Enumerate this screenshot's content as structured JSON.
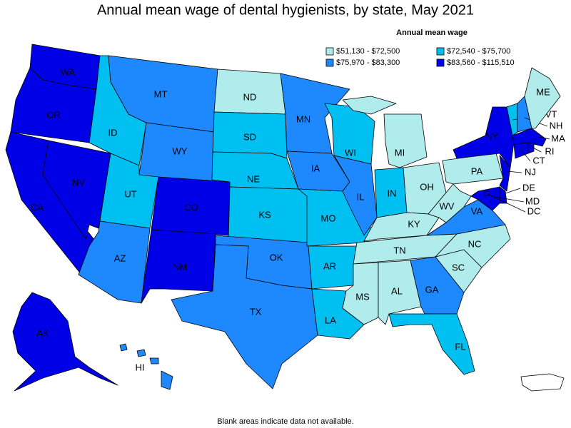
{
  "title": "Annual mean wage of dental hygienists, by state, May 2021",
  "legend": {
    "title": "Annual mean wage",
    "items": [
      {
        "label": "$51,130 - $72,500",
        "color": "#b0ecec"
      },
      {
        "label": "$72,540 - $75,700",
        "color": "#00c0f2"
      },
      {
        "label": "$75,970 - $83,300",
        "color": "#1e88ff"
      },
      {
        "label": "$83,560 - $115,510",
        "color": "#0000e6"
      }
    ]
  },
  "states": [
    {
      "label": "WA",
      "class": 3
    },
    {
      "label": "OR",
      "class": 3
    },
    {
      "label": "CA",
      "class": 3
    },
    {
      "label": "NV",
      "class": 3
    },
    {
      "label": "ID",
      "class": 1
    },
    {
      "label": "MT",
      "class": 2
    },
    {
      "label": "WY",
      "class": 2
    },
    {
      "label": "UT",
      "class": 1
    },
    {
      "label": "AZ",
      "class": 2
    },
    {
      "label": "CO",
      "class": 3
    },
    {
      "label": "NM",
      "class": 3
    },
    {
      "label": "ND",
      "class": 0
    },
    {
      "label": "SD",
      "class": 1
    },
    {
      "label": "NE",
      "class": 1
    },
    {
      "label": "KS",
      "class": 1
    },
    {
      "label": "OK",
      "class": 2
    },
    {
      "label": "TX",
      "class": 2
    },
    {
      "label": "MN",
      "class": 2
    },
    {
      "label": "IA",
      "class": 2
    },
    {
      "label": "MO",
      "class": 1
    },
    {
      "label": "AR",
      "class": 1
    },
    {
      "label": "LA",
      "class": 1
    },
    {
      "label": "WI",
      "class": 1
    },
    {
      "label": "IL",
      "class": 2
    },
    {
      "label": "MI",
      "class": 0
    },
    {
      "label": "IN",
      "class": 1
    },
    {
      "label": "OH",
      "class": 0
    },
    {
      "label": "KY",
      "class": 0
    },
    {
      "label": "TN",
      "class": 0
    },
    {
      "label": "MS",
      "class": 0
    },
    {
      "label": "AL",
      "class": 0
    },
    {
      "label": "GA",
      "class": 2
    },
    {
      "label": "FL",
      "class": 1
    },
    {
      "label": "SC",
      "class": 0
    },
    {
      "label": "NC",
      "class": 0
    },
    {
      "label": "VA",
      "class": 2
    },
    {
      "label": "WV",
      "class": 0
    },
    {
      "label": "PA",
      "class": 0
    },
    {
      "label": "NY",
      "class": 3
    },
    {
      "label": "NJ",
      "class": 3
    },
    {
      "label": "DE",
      "class": 3
    },
    {
      "label": "MD",
      "class": 3
    },
    {
      "label": "DC",
      "class": 3
    },
    {
      "label": "VT",
      "class": 1
    },
    {
      "label": "NH",
      "class": 2
    },
    {
      "label": "ME",
      "class": 0
    },
    {
      "label": "MA",
      "class": 3
    },
    {
      "label": "CT",
      "class": 3
    },
    {
      "label": "RI",
      "class": 3
    },
    {
      "label": "AK",
      "class": 3
    },
    {
      "label": "HI",
      "class": 2
    }
  ],
  "footnote": "Blank areas indicate data not available."
}
